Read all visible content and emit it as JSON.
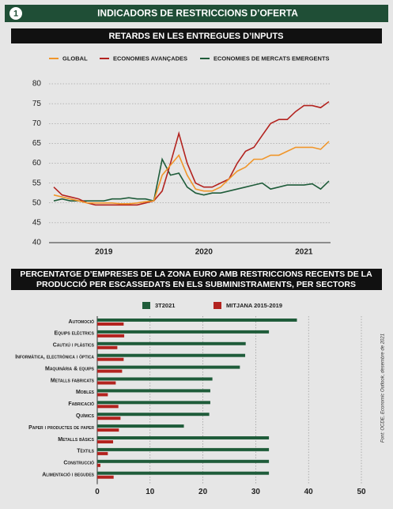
{
  "header": {
    "number": "1",
    "title": "INDICADORS DE RESTRICCIONS D’OFERTA"
  },
  "source": "Font: OCDE, Economic Outlook, desembre de 2021",
  "chart_data": [
    {
      "type": "line",
      "title": "RETARDS EN LES ENTREGUES D’INPUTS",
      "categories": [
        null,
        null,
        null,
        null,
        null,
        null,
        "2019",
        null,
        null,
        null,
        null,
        null,
        null,
        null,
        null,
        null,
        null,
        null,
        "2020",
        null,
        null,
        null,
        null,
        null,
        null,
        null,
        null,
        null,
        null,
        null,
        "2021",
        null,
        null,
        null
      ],
      "ylim": [
        40,
        80
      ],
      "yticks": [
        40,
        45,
        50,
        55,
        60,
        65,
        70,
        75,
        80
      ],
      "grid": true,
      "series": [
        {
          "name": "GLOBAL",
          "color": "#f0962b",
          "values": [
            52,
            51.5,
            51,
            50.5,
            50,
            50,
            50,
            50,
            49.8,
            49.8,
            50,
            50.3,
            50.5,
            57,
            59.5,
            62,
            57,
            53.5,
            53,
            53,
            54,
            56,
            58,
            59,
            61,
            61,
            62,
            62,
            63,
            64,
            64,
            64,
            63.5,
            65.5
          ]
        },
        {
          "name": "ECONOMIES AVANÇADES",
          "color": "#b3231f",
          "values": [
            54,
            52,
            51.5,
            51,
            50,
            49.5,
            49.5,
            49.5,
            49.5,
            49.5,
            49.5,
            50,
            50.5,
            53,
            60,
            67.5,
            60,
            55,
            54,
            54,
            55,
            56,
            60,
            63,
            64,
            67,
            70,
            71,
            71,
            73,
            74.5,
            74.5,
            74,
            75.5
          ]
        },
        {
          "name": "ECONOMIES DE MERCATS EMERGENTS",
          "color": "#1f5c3a",
          "values": [
            50.5,
            51,
            50.5,
            50.5,
            50.5,
            50.5,
            50.5,
            51,
            51,
            51.3,
            51,
            51,
            50.5,
            61,
            57,
            57.5,
            54,
            52.5,
            52,
            52.5,
            52.5,
            53,
            53.5,
            54,
            54.5,
            55,
            53.5,
            54,
            54.5,
            54.5,
            54.5,
            54.8,
            53.5,
            55.5
          ]
        }
      ]
    },
    {
      "type": "hbar",
      "title": [
        "PERCENTATGE D’EMPRESES DE LA ZONA EURO AMB RESTRICCIONS RECENTS DE LA",
        "PRODUCCIÓ PER ESCASSEDATS EN ELS SUBMINISTRAMENTS, PER SECTORS"
      ],
      "categories": [
        "Automoció",
        "Equips elèctrics",
        "Cautxú i plàstics",
        "Informàtica, electrònica i òptica",
        "Maquinària & equips",
        "Metalls fabricats",
        "Mobles",
        "Fabricació",
        "Químics",
        "Paper i productes de paper",
        "Metalls bàsics",
        "Tèxtils",
        "Construcció",
        "Alimentació i begudes"
      ],
      "xlim": [
        0,
        50
      ],
      "xticks": [
        0,
        10,
        20,
        30,
        40,
        50
      ],
      "grid": true,
      "series": [
        {
          "name": "3T2021",
          "color": "#1f5c3a",
          "values": [
            37.8,
            32.5,
            28.1,
            28,
            27,
            21.8,
            21.4,
            21.4,
            21.2,
            16.4,
            32.5,
            32.5,
            32.5,
            32.5
          ]
        },
        {
          "name": "MITJANA 2015-2019",
          "color": "#b3231f",
          "values": [
            5,
            5.1,
            3.8,
            5,
            4.7,
            3.5,
            2,
            4,
            4.4,
            4.1,
            3,
            2,
            0.6,
            3.1
          ]
        }
      ]
    }
  ]
}
